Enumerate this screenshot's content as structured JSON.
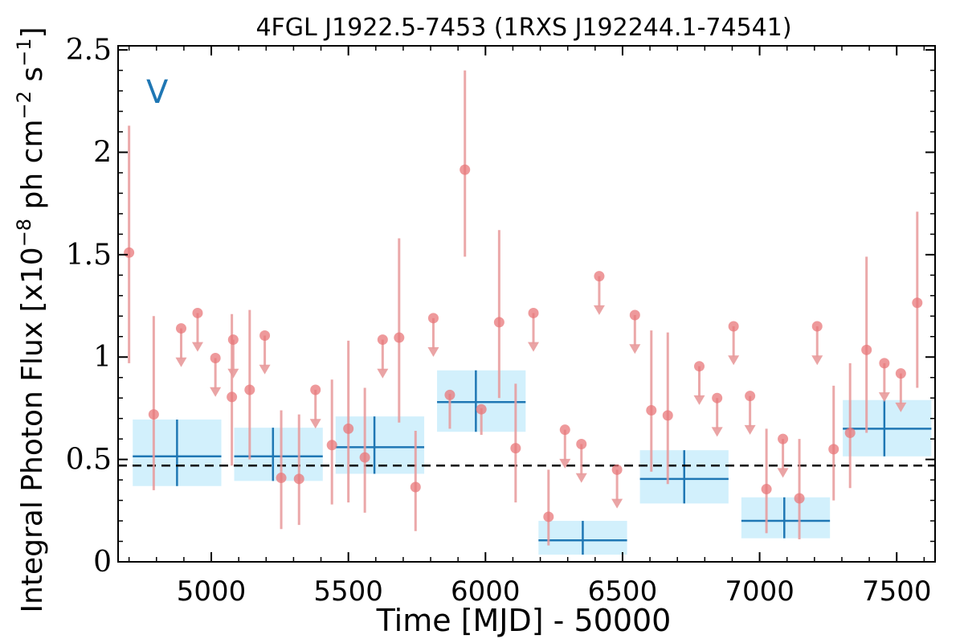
{
  "chart_data": {
    "type": "scatter",
    "title": "4FGL J1922.5-7453 (1RXS J192244.1-74541)",
    "xlabel": "Time [MJD] - 50000",
    "ylabel": "Integral Photon Flux [x10",
    "ylabel_exp1": "−8",
    "ylabel_mid": " ph cm",
    "ylabel_exp2": "−2",
    "ylabel_end": " s",
    "ylabel_exp3": "−1",
    "ylabel_close": "]",
    "annotation": "V",
    "xlim": [
      4660,
      7640
    ],
    "ylim": [
      0,
      2.52
    ],
    "xticks": [
      5000,
      5500,
      6000,
      6500,
      7000,
      7500
    ],
    "xtick_labels": [
      "5000",
      "5500",
      "6000",
      "6500",
      "7000",
      "7500"
    ],
    "yticks": [
      0,
      0.5,
      1,
      1.5,
      2,
      2.5
    ],
    "ytick_labels": [
      "0",
      "0.5",
      "1",
      "1.5",
      "2",
      "2.5"
    ],
    "reference_line": 0.47,
    "colors": {
      "points": "#e8777a",
      "errorbars": "#e89a9b",
      "blocks": "#1f77b4",
      "block_fill": "#cdeefc",
      "annotation": "#1f77b4",
      "reference": "#000000"
    },
    "detections": [
      {
        "x": 4700,
        "y": 1.51,
        "ylo": 0.97,
        "yhi": 2.13
      },
      {
        "x": 4790,
        "y": 0.72,
        "ylo": 0.35,
        "yhi": 1.2
      },
      {
        "x": 5075,
        "y": 0.805,
        "ylo": 0.47,
        "yhi": 1.21
      },
      {
        "x": 5140,
        "y": 0.84,
        "ylo": 0.5,
        "yhi": 1.23
      },
      {
        "x": 5255,
        "y": 0.41,
        "ylo": 0.16,
        "yhi": 0.74
      },
      {
        "x": 5320,
        "y": 0.405,
        "ylo": 0.18,
        "yhi": 0.72
      },
      {
        "x": 5440,
        "y": 0.57,
        "ylo": 0.28,
        "yhi": 0.89
      },
      {
        "x": 5500,
        "y": 0.65,
        "ylo": 0.29,
        "yhi": 1.08
      },
      {
        "x": 5560,
        "y": 0.51,
        "ylo": 0.24,
        "yhi": 0.85
      },
      {
        "x": 5685,
        "y": 1.095,
        "ylo": 0.68,
        "yhi": 1.58
      },
      {
        "x": 5745,
        "y": 0.365,
        "ylo": 0.15,
        "yhi": 0.64
      },
      {
        "x": 5870,
        "y": 0.815,
        "ylo": 0.65,
        "yhi": 0.82
      },
      {
        "x": 5925,
        "y": 1.915,
        "ylo": 1.49,
        "yhi": 2.4
      },
      {
        "x": 5985,
        "y": 0.745,
        "ylo": 0.62,
        "yhi": 0.75
      },
      {
        "x": 6050,
        "y": 1.17,
        "ylo": 0.8,
        "yhi": 1.62
      },
      {
        "x": 6110,
        "y": 0.555,
        "ylo": 0.29,
        "yhi": 0.87
      },
      {
        "x": 6230,
        "y": 0.22,
        "ylo": 0.08,
        "yhi": 0.45
      },
      {
        "x": 6605,
        "y": 0.74,
        "ylo": 0.44,
        "yhi": 1.13
      },
      {
        "x": 6665,
        "y": 0.715,
        "ylo": 0.38,
        "yhi": 1.12
      },
      {
        "x": 7025,
        "y": 0.355,
        "ylo": 0.14,
        "yhi": 0.65
      },
      {
        "x": 7145,
        "y": 0.31,
        "ylo": 0.11,
        "yhi": 0.6
      },
      {
        "x": 7270,
        "y": 0.55,
        "ylo": 0.3,
        "yhi": 0.86
      },
      {
        "x": 7330,
        "y": 0.63,
        "ylo": 0.36,
        "yhi": 0.97
      },
      {
        "x": 7390,
        "y": 1.035,
        "ylo": 0.63,
        "yhi": 1.49
      },
      {
        "x": 7575,
        "y": 1.265,
        "ylo": 0.85,
        "yhi": 1.71
      }
    ],
    "upper_limits": [
      {
        "x": 4890,
        "y": 1.14
      },
      {
        "x": 4950,
        "y": 1.215
      },
      {
        "x": 5015,
        "y": 0.995
      },
      {
        "x": 5080,
        "y": 1.085
      },
      {
        "x": 5195,
        "y": 1.105
      },
      {
        "x": 5380,
        "y": 0.84
      },
      {
        "x": 5625,
        "y": 1.085
      },
      {
        "x": 5810,
        "y": 1.19
      },
      {
        "x": 6175,
        "y": 1.215
      },
      {
        "x": 6290,
        "y": 0.645
      },
      {
        "x": 6350,
        "y": 0.575
      },
      {
        "x": 6415,
        "y": 1.395
      },
      {
        "x": 6480,
        "y": 0.45
      },
      {
        "x": 6545,
        "y": 1.205
      },
      {
        "x": 6780,
        "y": 0.955
      },
      {
        "x": 6845,
        "y": 0.8
      },
      {
        "x": 6905,
        "y": 1.15
      },
      {
        "x": 6965,
        "y": 0.81
      },
      {
        "x": 7085,
        "y": 0.6
      },
      {
        "x": 7210,
        "y": 1.15
      },
      {
        "x": 7455,
        "y": 0.97
      },
      {
        "x": 7515,
        "y": 0.92
      }
    ],
    "bayesian_blocks": [
      {
        "x0": 4690,
        "x1": 5060,
        "y": 0.515,
        "ylo": 0.37,
        "yhi": 0.695,
        "xc": 4875
      },
      {
        "x0": 5060,
        "x1": 5430,
        "y": 0.515,
        "ylo": 0.395,
        "yhi": 0.655,
        "xc": 5225
      },
      {
        "x0": 5430,
        "x1": 5800,
        "y": 0.56,
        "ylo": 0.43,
        "yhi": 0.71,
        "xc": 5595
      },
      {
        "x0": 5800,
        "x1": 6170,
        "y": 0.78,
        "ylo": 0.635,
        "yhi": 0.935,
        "xc": 5965
      },
      {
        "x0": 6170,
        "x1": 6540,
        "y": 0.105,
        "ylo": 0.035,
        "yhi": 0.2,
        "xc": 6355
      },
      {
        "x0": 6540,
        "x1": 6910,
        "y": 0.405,
        "ylo": 0.285,
        "yhi": 0.545,
        "xc": 6725
      },
      {
        "x0": 6910,
        "x1": 7280,
        "y": 0.2,
        "ylo": 0.115,
        "yhi": 0.315,
        "xc": 7090
      },
      {
        "x0": 7280,
        "x1": 7650,
        "y": 0.65,
        "ylo": 0.515,
        "yhi": 0.79,
        "xc": 7455
      }
    ]
  }
}
